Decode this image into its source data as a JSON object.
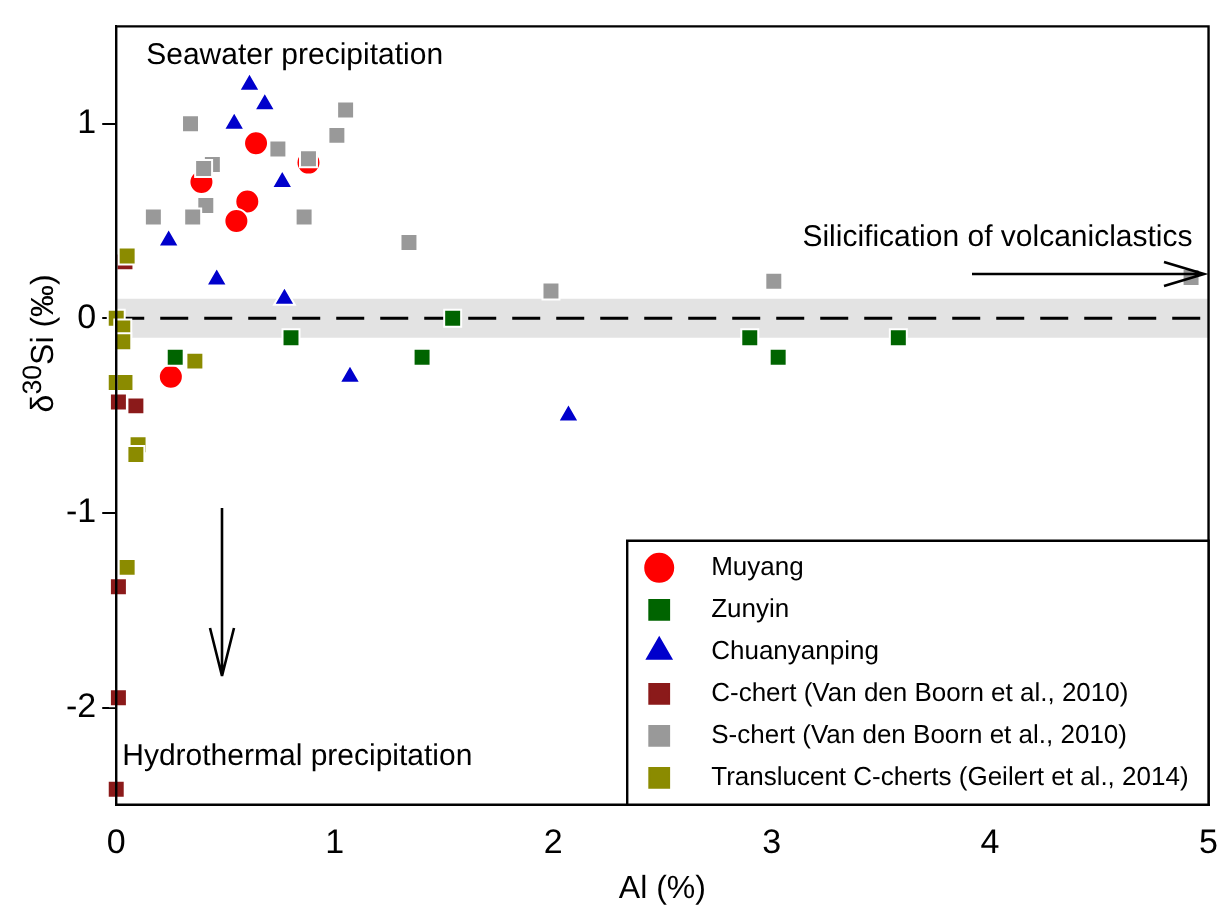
{
  "chart_data": {
    "type": "scatter",
    "xlabel": "Al (%)",
    "ylabel": "δ$^{30}$Si (‰)",
    "xlim": [
      0,
      5
    ],
    "ylim": [
      -2.5,
      1.5
    ],
    "xticks": [
      0,
      1,
      2,
      3,
      4,
      5
    ],
    "yticks": [
      -2,
      -1,
      0,
      1
    ],
    "grid": false,
    "legend": "bottom right",
    "annotations": [
      "Seawater precipitation",
      "Silicification of volcaniclastics",
      "Hydrothermal precipitation"
    ],
    "ref_lines": [
      {
        "axis": "y",
        "value": 0,
        "color": "#000000",
        "line_style": "dashed"
      }
    ],
    "bands": [
      {
        "axis": "y",
        "from": -0.1,
        "to": 0.1,
        "color": "#e3e3e3"
      }
    ],
    "series": [
      {
        "name": "Muyang",
        "color": "#ff0000",
        "marker": "circle",
        "x": [
          0.64,
          0.88,
          0.39,
          0.6,
          0.55,
          0.25
        ],
        "values": [
          0.9,
          0.8,
          0.7,
          0.6,
          0.5,
          -0.3
        ]
      },
      {
        "name": "Zunyin",
        "color": "#006400",
        "marker": "square",
        "x": [
          0.27,
          0.8,
          1.54,
          1.4,
          2.9,
          3.03,
          3.58
        ],
        "values": [
          -0.2,
          -0.1,
          0,
          -0.2,
          -0.1,
          -0.2,
          -0.1
        ]
      },
      {
        "name": "Chuanyanping",
        "color": "#0000cc",
        "marker": "triangle",
        "x": [
          0.61,
          0.68,
          0.54,
          0.76,
          0.24,
          0.46,
          0.77,
          1.07,
          2.07
        ],
        "values": [
          1.2,
          1.1,
          1.0,
          0.7,
          0.4,
          0.2,
          0.1,
          -0.3,
          -0.5
        ]
      },
      {
        "name": "C-chert (Van den Boorn et al., 2010)",
        "color": "#8b1a1a",
        "marker": "square",
        "x": [
          0.04,
          0.01,
          0.09,
          0.01,
          0.01,
          0
        ],
        "values": [
          0.29,
          -0.43,
          -0.45,
          -1.38,
          -1.95,
          -2.42
        ]
      },
      {
        "name": "S-chert (Van den Boorn et al., 2010)",
        "color": "#999999",
        "marker": "square",
        "x": [
          0.34,
          1.05,
          1.01,
          0.74,
          0.44,
          0.4,
          0.88,
          0.41,
          0.35,
          0.17,
          0.86,
          1.34,
          1.99,
          3.01,
          4.92
        ],
        "values": [
          1.0,
          1.07,
          0.94,
          0.87,
          0.79,
          0.77,
          0.82,
          0.58,
          0.52,
          0.52,
          0.52,
          0.39,
          0.14,
          0.19,
          0.21
        ]
      },
      {
        "name": "Translucent C-cherts (Geilert et al., 2014)",
        "color": "#8b8b00",
        "marker": "square",
        "x": [
          0.05,
          0,
          0.03,
          0.03,
          0,
          0.04,
          0.36,
          0.1,
          0.09,
          0.05
        ],
        "values": [
          0.32,
          0,
          -0.05,
          -0.12,
          -0.33,
          -0.33,
          -0.22,
          -0.65,
          -0.7,
          -1.28
        ]
      }
    ]
  }
}
